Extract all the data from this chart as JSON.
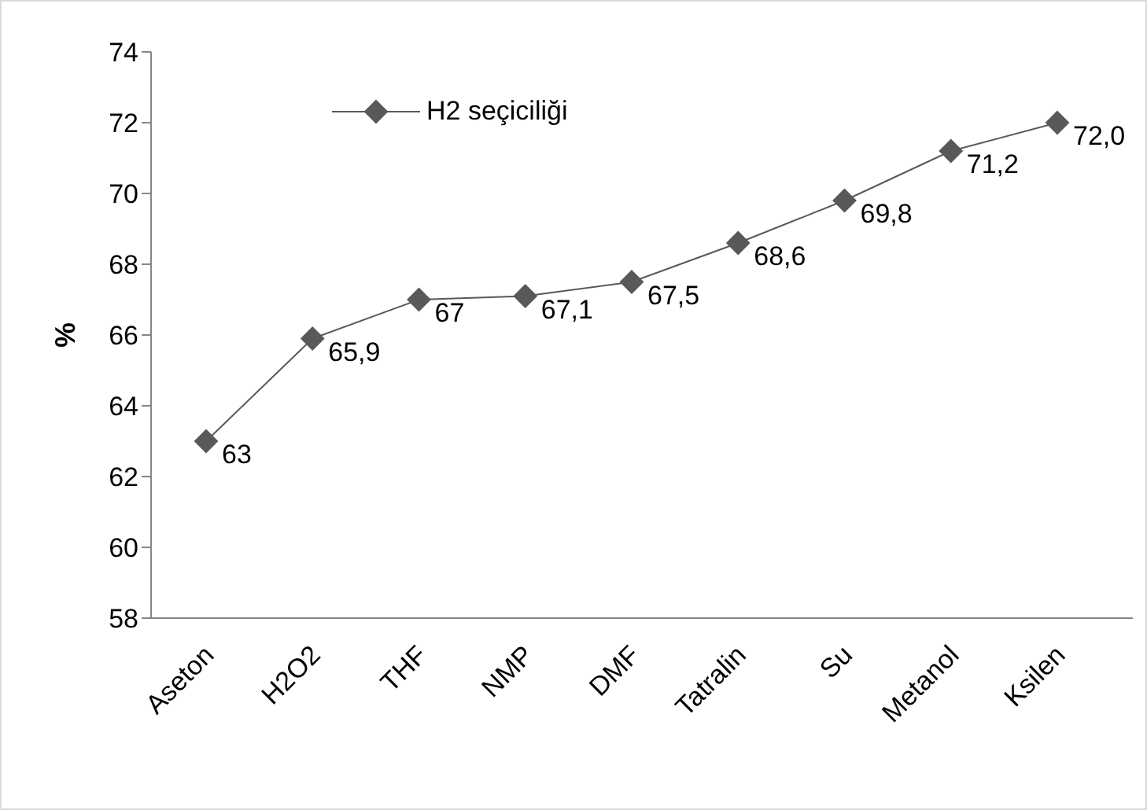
{
  "chart_data": {
    "type": "line",
    "ylabel": "%",
    "categories": [
      "Aseton",
      "H2O2",
      "THF",
      "NMP",
      "DMF",
      "Tatralin",
      "Su",
      "Metanol",
      "Ksilen"
    ],
    "series": [
      {
        "name": "H2 seçiciliği",
        "color": "#595959",
        "values": [
          63,
          65.9,
          67,
          67.1,
          67.5,
          68.6,
          69.8,
          71.2,
          72.0
        ],
        "value_labels": [
          "63",
          "65,9",
          "67",
          "67,1",
          "67,5",
          "68,6",
          "69,8",
          "71,2",
          "72,0"
        ]
      }
    ],
    "ylim": [
      58,
      74
    ],
    "yticks": [
      58,
      60,
      62,
      64,
      66,
      68,
      70,
      72,
      74
    ],
    "grid": false,
    "legend": "top left",
    "marker": "diamond",
    "line_style": "solid"
  }
}
